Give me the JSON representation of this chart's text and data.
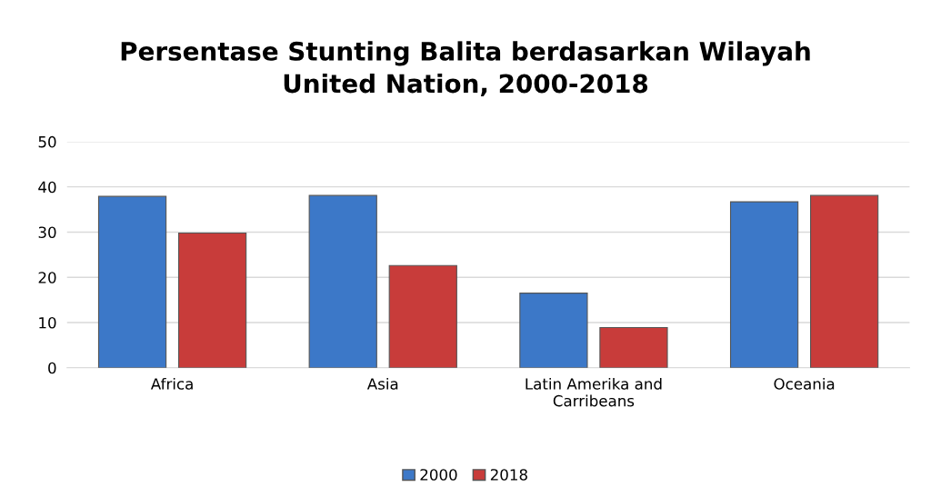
{
  "chart_data": {
    "type": "bar",
    "title": "Persentase Stunting Balita berdasarkan Wilayah\nUnited Nation, 2000-2018",
    "categories": [
      "Africa",
      "Asia",
      "Latin Amerika and\nCarribeans",
      "Oceania"
    ],
    "series": [
      {
        "name": "2000",
        "color": "#3c78c8",
        "values": [
          37.9,
          38.1,
          16.5,
          36.7
        ]
      },
      {
        "name": "2018",
        "color": "#c83c3a",
        "values": [
          29.8,
          22.6,
          8.9,
          38.1
        ]
      }
    ],
    "ylim": [
      0,
      50
    ],
    "yticks": [
      0,
      10,
      20,
      30,
      40,
      50
    ],
    "grid": "y",
    "legend": "bottom"
  }
}
